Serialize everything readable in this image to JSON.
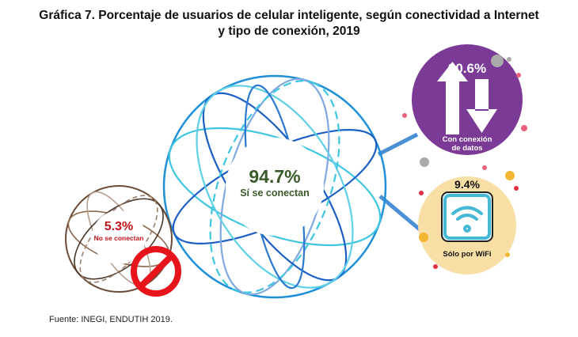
{
  "chart_data": {
    "type": "infographic",
    "title_line1": "Gráfica 7. Porcentaje de usuarios de celular inteligente, según conectividad a Internet",
    "title_line2": "y tipo de conexión, 2019",
    "categories": [
      {
        "name": "Sí se conectan",
        "value": 94.7,
        "label": "94.7%",
        "color": "#3a5a2a"
      },
      {
        "name": "No se conectan",
        "value": 5.3,
        "label": "5.3%",
        "color": "#c0141c"
      }
    ],
    "breakdown": [
      {
        "name": "Con conexión de datos",
        "line1": "Con conexión",
        "line2": "de datos",
        "value": 90.6,
        "label": "90.6%",
        "color": "#7b3a96"
      },
      {
        "name": "Sólo por WiFi",
        "value": 9.4,
        "label": "9.4%",
        "color": "#f7dfa5"
      }
    ],
    "source": "Fuente: INEGI, ENDUTIH 2019."
  }
}
